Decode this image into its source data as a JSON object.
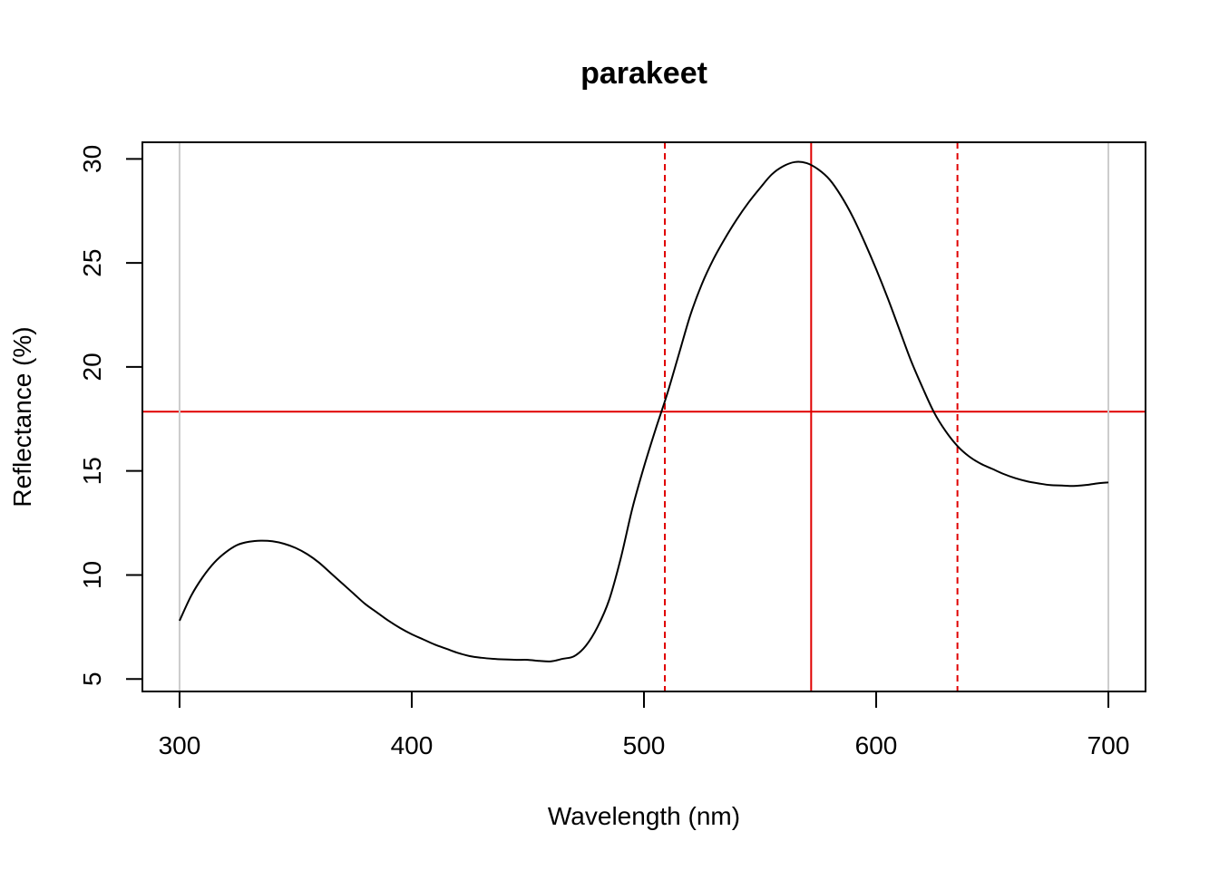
{
  "chart_data": {
    "type": "line",
    "title": "parakeet",
    "xlabel": "Wavelength (nm)",
    "ylabel": "Reflectance (%)",
    "xlim": [
      284,
      716
    ],
    "ylim": [
      4.4,
      30.8
    ],
    "xticks": [
      "300",
      "400",
      "500",
      "600",
      "700"
    ],
    "yticks": [
      "5",
      "10",
      "15",
      "20",
      "25",
      "30"
    ],
    "grid": false,
    "legend": "none",
    "series": [
      {
        "color": "#000000",
        "x": [
          300,
          305,
          310,
          315,
          320,
          325,
          330,
          335,
          340,
          345,
          350,
          355,
          360,
          365,
          370,
          375,
          380,
          385,
          390,
          395,
          400,
          405,
          410,
          415,
          420,
          425,
          430,
          435,
          440,
          445,
          450,
          455,
          460,
          465,
          470,
          475,
          480,
          485,
          490,
          495,
          500,
          505,
          510,
          515,
          520,
          525,
          530,
          535,
          540,
          545,
          550,
          555,
          560,
          565,
          570,
          575,
          580,
          585,
          590,
          595,
          600,
          605,
          610,
          615,
          620,
          625,
          630,
          635,
          640,
          645,
          650,
          655,
          660,
          665,
          670,
          675,
          680,
          685,
          690,
          695,
          700
        ],
        "y": [
          7.8,
          9.0,
          9.9,
          10.6,
          11.1,
          11.45,
          11.6,
          11.65,
          11.62,
          11.5,
          11.3,
          11.0,
          10.6,
          10.1,
          9.6,
          9.1,
          8.6,
          8.2,
          7.8,
          7.45,
          7.15,
          6.9,
          6.65,
          6.45,
          6.25,
          6.1,
          6.02,
          5.97,
          5.94,
          5.92,
          5.92,
          5.87,
          5.85,
          5.97,
          6.1,
          6.6,
          7.5,
          8.8,
          10.8,
          13.2,
          15.2,
          17.0,
          18.7,
          20.6,
          22.5,
          24.0,
          25.2,
          26.2,
          27.1,
          27.9,
          28.6,
          29.25,
          29.65,
          29.85,
          29.8,
          29.5,
          29.0,
          28.2,
          27.2,
          26.0,
          24.7,
          23.3,
          21.8,
          20.3,
          19.0,
          17.8,
          16.9,
          16.2,
          15.7,
          15.35,
          15.1,
          14.85,
          14.65,
          14.5,
          14.4,
          14.32,
          14.3,
          14.28,
          14.32,
          14.4,
          14.45
        ]
      }
    ],
    "reference_lines": [
      {
        "orientation": "horizontal",
        "value": 17.85,
        "style": "solid",
        "color": "#e00000"
      },
      {
        "orientation": "vertical",
        "value": 572,
        "style": "solid",
        "color": "#e00000"
      },
      {
        "orientation": "vertical",
        "value": 509,
        "style": "dashed",
        "color": "#e00000"
      },
      {
        "orientation": "vertical",
        "value": 635,
        "style": "dashed",
        "color": "#e00000"
      },
      {
        "orientation": "vertical",
        "value": 300,
        "style": "solid",
        "color": "#cccccc"
      },
      {
        "orientation": "vertical",
        "value": 700,
        "style": "solid",
        "color": "#cccccc"
      }
    ]
  }
}
